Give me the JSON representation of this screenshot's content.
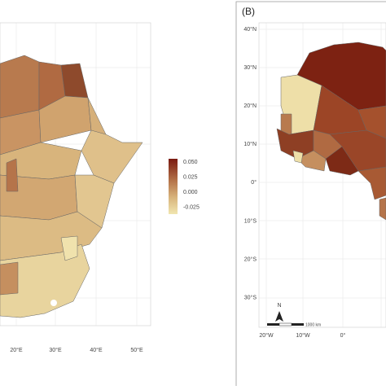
{
  "panel_a": {
    "x_axis": [
      "20°E",
      "30°E",
      "40°E",
      "50°E"
    ],
    "legend": [
      "0.050",
      "0.025",
      "0.000",
      "-0.025"
    ]
  },
  "panel_b": {
    "label": "(B)",
    "y_axis": [
      "40°N",
      "30°N",
      "20°N",
      "10°N",
      "0°",
      "10°S",
      "20°S",
      "30°S"
    ],
    "x_axis": [
      "20°W",
      "10°W",
      "0°"
    ],
    "north": "N",
    "scale_bar": "1000 km"
  }
}
